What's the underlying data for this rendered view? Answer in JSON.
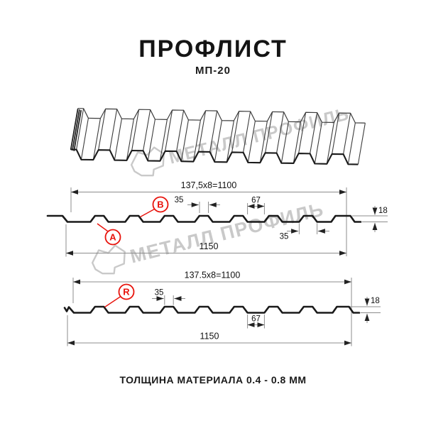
{
  "header": {
    "title": "ПРОФЛИСТ",
    "subtitle": "МП-20"
  },
  "watermark": {
    "brand_text": "МЕТАЛЛ ПРОФИЛЬ"
  },
  "section_top": {
    "pitch_dim": "137,5x8=1100",
    "overall_width": "1150",
    "rib_top_width": "35",
    "valley_width": "67",
    "rib_bottom_width": "35",
    "profile_height": "18",
    "label_a": "A",
    "label_b": "B"
  },
  "section_bottom": {
    "pitch_dim": "137.5x8=1100",
    "overall_width": "1150",
    "rib_top_width": "35",
    "valley_width": "67",
    "profile_height": "18",
    "label_r": "R"
  },
  "footer": {
    "caption": "ТОЛЩИНА МАТЕРИАЛА 0.4 - 0.8 ММ"
  },
  "colors": {
    "accent_red": "#e8130c",
    "drawing_line": "#1a1a1a",
    "dimension_line": "#8c8c8c",
    "watermark_gray": "#c9c9c9",
    "title_text": "#141414"
  }
}
